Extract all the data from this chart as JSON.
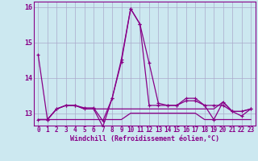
{
  "xlabel": "Windchill (Refroidissement éolien,°C)",
  "background_color": "#cce8f0",
  "grid_color": "#aaaacc",
  "line_color": "#880088",
  "spine_color": "#880088",
  "xlim": [
    -0.5,
    23.5
  ],
  "ylim": [
    12.65,
    16.15
  ],
  "yticks": [
    13,
    14,
    15,
    16
  ],
  "xticks": [
    0,
    1,
    2,
    3,
    4,
    5,
    6,
    7,
    8,
    9,
    10,
    11,
    12,
    13,
    14,
    15,
    16,
    17,
    18,
    19,
    20,
    21,
    22,
    23
  ],
  "series": {
    "line1_x": [
      0,
      1,
      2,
      3,
      4,
      5,
      6,
      7,
      8,
      9,
      10,
      11,
      12,
      13,
      14,
      15,
      16,
      17,
      18,
      19,
      20,
      21,
      22,
      23
    ],
    "line1_y": [
      14.65,
      12.82,
      13.12,
      13.22,
      13.22,
      13.15,
      13.15,
      12.78,
      13.42,
      14.45,
      15.95,
      15.52,
      14.42,
      13.28,
      13.22,
      13.22,
      13.35,
      13.35,
      13.22,
      13.22,
      13.22,
      13.05,
      12.92,
      13.12
    ],
    "line2_x": [
      0,
      1,
      2,
      3,
      4,
      5,
      6,
      7,
      8,
      9,
      10,
      11,
      12,
      13,
      14,
      15,
      16,
      17,
      18,
      19,
      20,
      21,
      22,
      23
    ],
    "line2_y": [
      12.82,
      12.82,
      13.12,
      13.22,
      13.22,
      13.12,
      13.12,
      12.62,
      13.42,
      14.52,
      15.95,
      15.52,
      13.22,
      13.22,
      13.22,
      13.22,
      13.42,
      13.42,
      13.22,
      12.82,
      13.32,
      13.05,
      13.05,
      13.12
    ],
    "line3_x": [
      0,
      1,
      2,
      3,
      4,
      5,
      6,
      7,
      8,
      9,
      10,
      11,
      12,
      13,
      14,
      15,
      16,
      17,
      18,
      19,
      20,
      21,
      22,
      23
    ],
    "line3_y": [
      12.82,
      12.82,
      12.82,
      12.82,
      12.82,
      12.82,
      12.82,
      12.82,
      12.82,
      12.82,
      13.0,
      13.0,
      13.0,
      13.0,
      13.0,
      13.0,
      13.0,
      13.0,
      12.82,
      12.82,
      12.82,
      12.82,
      12.82,
      12.82
    ],
    "line4_x": [
      0,
      1,
      2,
      3,
      4,
      5,
      6,
      7,
      8,
      9,
      10,
      11,
      12,
      13,
      14,
      15,
      16,
      17,
      18,
      19,
      20,
      21,
      22,
      23
    ],
    "line4_y": [
      12.82,
      12.82,
      13.12,
      13.22,
      13.22,
      13.12,
      13.12,
      13.12,
      13.12,
      13.12,
      13.12,
      13.12,
      13.12,
      13.12,
      13.12,
      13.12,
      13.12,
      13.12,
      13.12,
      13.12,
      13.32,
      13.05,
      13.05,
      13.12
    ]
  },
  "tick_fontsize": 5.5,
  "xlabel_fontsize": 6.0
}
